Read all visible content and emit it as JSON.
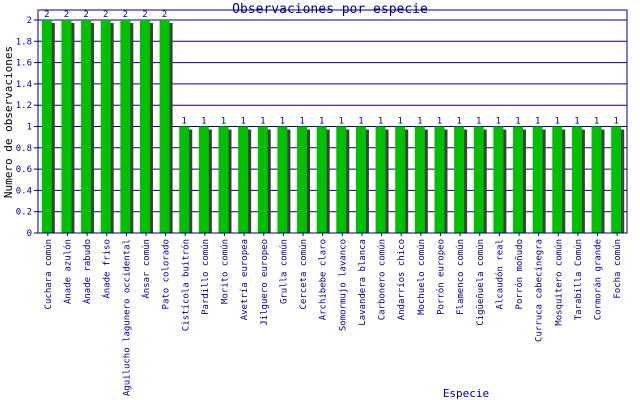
{
  "chart_data": {
    "type": "bar",
    "title": "Observaciones por especie",
    "xlabel": "Especie",
    "ylabel": "Numero de observaciones",
    "ylim": [
      0,
      2
    ],
    "yticks": [
      0,
      0.2,
      0.4,
      0.6,
      0.8,
      1,
      1.2,
      1.4,
      1.6,
      1.8,
      2
    ],
    "ytick_labels": [
      "0",
      "0.2",
      "0.4",
      "0.6",
      "0.8",
      "1",
      "1.2",
      "1.4",
      "1.6",
      "1.8",
      "2"
    ],
    "grid": true,
    "categories": [
      "Cuchara común",
      "Ánade azulón",
      "Ánade rabudo",
      "Ánade friso",
      "Aguilucho lagunero occidental",
      "Ánsar común",
      "Pato colorado",
      "Cistícola buitrón",
      "Pardillo común",
      "Morito común",
      "Avetría europea",
      "Jilguero europeo",
      "Grulla común",
      "Cerceta común",
      "Archibebe claro",
      "Somormujo lavanco",
      "Lavandera blanca",
      "Carbonero común",
      "Andarríos chico",
      "Mochuelo común",
      "Porrón europeo",
      "Flamenco común",
      "Cigüeñuela común",
      "Alcaudón real",
      "Porrón moñudo",
      "Curruca cabecinegra",
      "Mosquitero común",
      "Tarabilla Común",
      "Cormorán grande",
      "Focha común"
    ],
    "values": [
      2,
      2,
      2,
      2,
      2,
      2,
      2,
      1,
      1,
      1,
      1,
      1,
      1,
      1,
      1,
      1,
      1,
      1,
      1,
      1,
      1,
      1,
      1,
      1,
      1,
      1,
      1,
      1,
      1,
      1
    ],
    "value_labels": [
      "2",
      "2",
      "2",
      "2",
      "2",
      "2",
      "2",
      "1",
      "1",
      "1",
      "1",
      "1",
      "1",
      "1",
      "1",
      "1",
      "1",
      "1",
      "1",
      "1",
      "1",
      "1",
      "1",
      "1",
      "1",
      "1",
      "1",
      "1",
      "1",
      "1"
    ],
    "colors": {
      "bar": "#00c000",
      "shadow": "#404040",
      "axis": "#000080",
      "title": "#000080"
    }
  }
}
